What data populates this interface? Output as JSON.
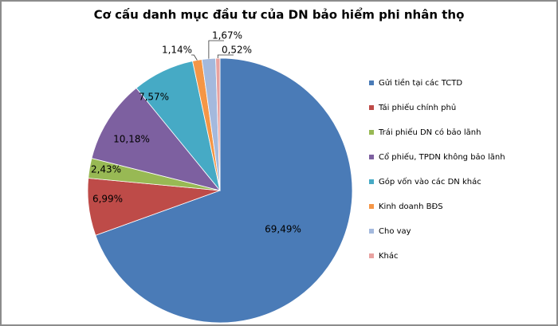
{
  "chart_data": {
    "type": "pie",
    "title": "Cơ cấu danh mục đầu tư của DN bảo hiểm phi nhân thọ",
    "categories": [
      "Gửi tiền tại các TCTD",
      "Tái phiếu chính phủ",
      "Trái phiếu DN có bảo lãnh",
      "Cổ phiếu, TPDN không bảo lãnh",
      "Góp vốn vào các DN khác",
      "Kinh doanh BĐS",
      "Cho vay",
      "Khác"
    ],
    "values": [
      69.49,
      6.99,
      2.43,
      10.18,
      7.57,
      1.14,
      1.67,
      0.52
    ],
    "value_labels": [
      "69,49%",
      "6,99%",
      "2,43%",
      "10,18%",
      "7,57%",
      "1,14%",
      "1,67%",
      "0,52%"
    ],
    "colors": [
      "#4a7bb7",
      "#be4b48",
      "#98b954",
      "#7d60a0",
      "#46aac5",
      "#f59646",
      "#a4b9dd",
      "#e8a2a0"
    ],
    "legend": "right"
  }
}
